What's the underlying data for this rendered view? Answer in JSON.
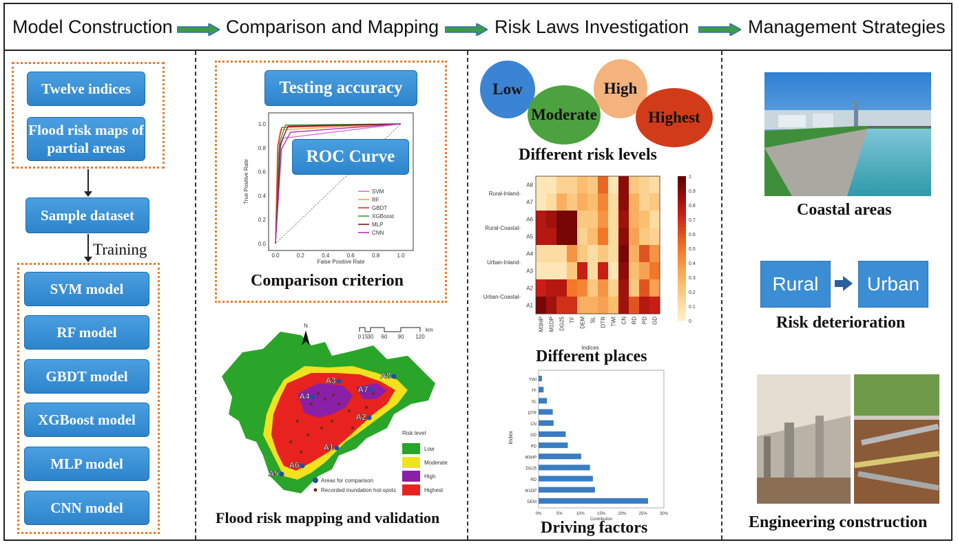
{
  "stages": [
    "Model Construction",
    "Comparison and Mapping",
    "Risk Laws Investigation",
    "Management Strategies"
  ],
  "col1": {
    "input_boxes": [
      "Twelve indices",
      "Flood risk maps of partial areas"
    ],
    "dataset": "Sample dataset",
    "training_label": "Training",
    "models": [
      "SVM model",
      "RF model",
      "GBDT model",
      "XGBoost model",
      "MLP model",
      "CNN model"
    ]
  },
  "col2": {
    "testing_accuracy": "Testing accuracy",
    "roc_curve": "ROC Curve",
    "comparison_criterion": "Comparison criterion",
    "mapping_caption": "Flood risk mapping and validation",
    "roc": {
      "xlabel": "False Positive Rate",
      "ylabel": "True Positive Rate",
      "ticks": [
        "0.0",
        "0.2",
        "0.4",
        "0.6",
        "0.8",
        "1.0"
      ],
      "xticks": [
        "0.0",
        "0.2",
        "0.4",
        "0.6",
        "0.8",
        "1.0"
      ],
      "legend": [
        {
          "name": "SVM",
          "color": "#d66fd1"
        },
        {
          "name": "RF",
          "color": "#f2a24b"
        },
        {
          "name": "GBDT",
          "color": "#d8342c"
        },
        {
          "name": "XGBoost",
          "color": "#2f9d3c"
        },
        {
          "name": "MLP",
          "color": "#7a1d1d"
        },
        {
          "name": "CNN",
          "color": "#b52fb8"
        }
      ]
    },
    "map": {
      "north": "N",
      "scale_labels": [
        "0",
        "15",
        "30",
        "60",
        "90",
        "120"
      ],
      "scale_unit": "km",
      "area_labels": [
        "A1",
        "A2",
        "A3",
        "A4",
        "A5",
        "A6",
        "A7",
        "A8"
      ],
      "legend_title": "Risk level",
      "legend": [
        {
          "name": "Low",
          "color": "#2aa52a"
        },
        {
          "name": "Moderate",
          "color": "#f0e21e"
        },
        {
          "name": "High",
          "color": "#8a1fa8"
        },
        {
          "name": "Highest",
          "color": "#e8231f"
        }
      ],
      "marker_legend": [
        "Areas for comparison",
        "Recorded inundation hot-spots"
      ]
    }
  },
  "col3": {
    "levels": [
      {
        "name": "Low",
        "color": "#3b84d4"
      },
      {
        "name": "Moderate",
        "color": "#4ca23e"
      },
      {
        "name": "High",
        "color": "#f4b27c"
      },
      {
        "name": "Highest",
        "color": "#d23b1a"
      }
    ],
    "risk_levels_caption": "Different risk levels",
    "places_caption": "Different places",
    "driving_caption": "Driving factors",
    "heatmap": {
      "rows": [
        "A8",
        "A7",
        "A6",
        "A5",
        "A4",
        "A3",
        "A2",
        "A1"
      ],
      "groups": [
        "Rural-Inland",
        "Rural-Coastal",
        "Urban-Inland",
        "Urban-Coastal"
      ],
      "cols": [
        "M3HP",
        "M1DP",
        "DG25",
        "TF",
        "DEM",
        "SL",
        "DTR",
        "TWI",
        "CN",
        "RD",
        "PD",
        "GD"
      ],
      "xlabel": "Indices",
      "colorbar_ticks": [
        "0",
        "0.1",
        "0.2",
        "0.3",
        "0.4",
        "0.5",
        "0.6",
        "0.7",
        "0.8",
        "0.9",
        "1"
      ]
    },
    "bars": {
      "ylabel": "Index",
      "xlabel": "Contribution",
      "xticks": [
        "0%",
        "5%",
        "10%",
        "15%",
        "20%",
        "25%",
        "30%"
      ],
      "items": [
        {
          "name": "TWI",
          "value": 0.8
        },
        {
          "name": "TF",
          "value": 1.2
        },
        {
          "name": "SL",
          "value": 2.0
        },
        {
          "name": "DTR",
          "value": 3.4
        },
        {
          "name": "CN",
          "value": 3.6
        },
        {
          "name": "GD",
          "value": 6.5
        },
        {
          "name": "PD",
          "value": 7.0
        },
        {
          "name": "M3HP",
          "value": 10.2
        },
        {
          "name": "DG25",
          "value": 12.3
        },
        {
          "name": "RD",
          "value": 13.0
        },
        {
          "name": "M1DP",
          "value": 13.5
        },
        {
          "name": "DEM",
          "value": 26.2
        }
      ]
    }
  },
  "col4": {
    "coastal_caption": "Coastal areas",
    "rural": "Rural",
    "urban": "Urban",
    "deterioration_caption": "Risk deterioration",
    "engineering_caption": "Engineering construction"
  }
}
